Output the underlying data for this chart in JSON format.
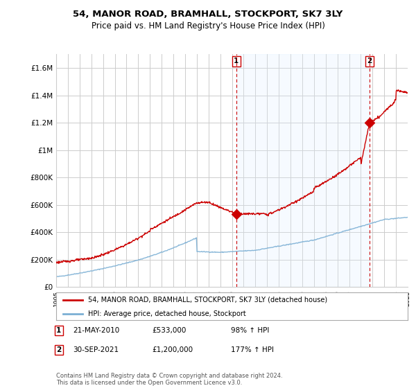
{
  "title": "54, MANOR ROAD, BRAMHALL, STOCKPORT, SK7 3LY",
  "subtitle": "Price paid vs. HM Land Registry's House Price Index (HPI)",
  "red_label": "54, MANOR ROAD, BRAMHALL, STOCKPORT, SK7 3LY (detached house)",
  "blue_label": "HPI: Average price, detached house, Stockport",
  "footnote": "Contains HM Land Registry data © Crown copyright and database right 2024.\nThis data is licensed under the Open Government Licence v3.0.",
  "ylim_min": 0,
  "ylim_max": 1700000,
  "yticks": [
    0,
    200000,
    400000,
    600000,
    800000,
    1000000,
    1200000,
    1400000,
    1600000
  ],
  "ytick_labels": [
    "£0",
    "£200K",
    "£400K",
    "£600K",
    "£800K",
    "£1M",
    "£1.2M",
    "£1.4M",
    "£1.6M"
  ],
  "bg_color": "#ffffff",
  "grid_color": "#cccccc",
  "red_color": "#cc0000",
  "blue_color": "#7bafd4",
  "shade_color": "#ddeeff",
  "point1_x": 2010.38,
  "point1_y": 533000,
  "point2_x": 2021.75,
  "point2_y": 1200000,
  "xmin": 1995,
  "xmax": 2025
}
